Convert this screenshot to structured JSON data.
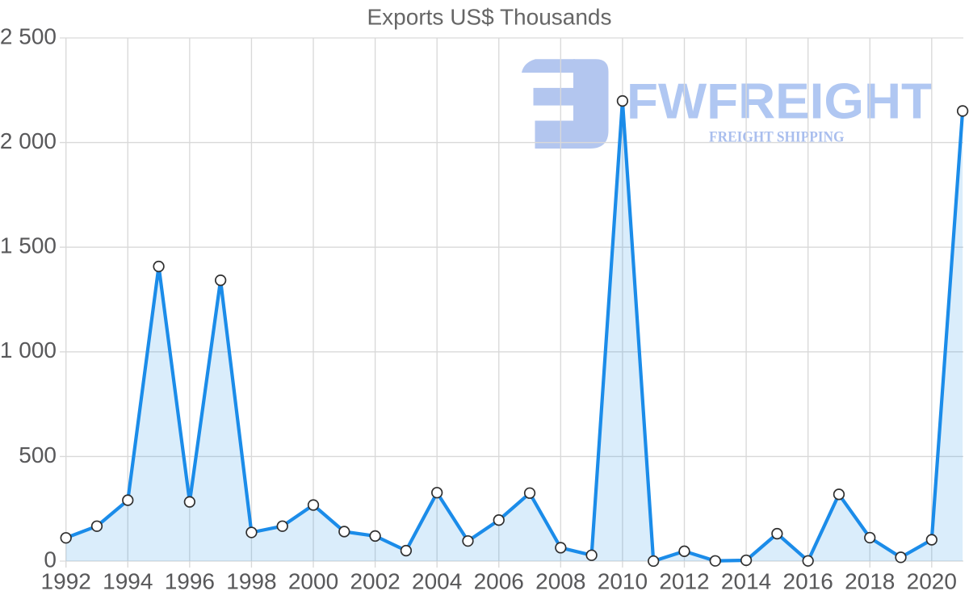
{
  "chart_data": {
    "type": "area",
    "title": "Exports US$ Thousands",
    "x": [
      1992,
      1993,
      1994,
      1995,
      1996,
      1997,
      1998,
      1999,
      2000,
      2001,
      2002,
      2003,
      2004,
      2005,
      2006,
      2007,
      2008,
      2009,
      2010,
      2011,
      2012,
      2013,
      2014,
      2015,
      2016,
      2017,
      2018,
      2019,
      2020,
      2021
    ],
    "values": [
      111,
      167,
      291,
      1408,
      283,
      1342,
      137,
      167,
      268,
      141,
      120,
      50,
      327,
      96,
      196,
      325,
      64,
      28,
      2199,
      0,
      47,
      1,
      4,
      131,
      1,
      319,
      112,
      18,
      102,
      2151
    ],
    "xlabel": "",
    "ylabel": "",
    "ylim": [
      0,
      2500
    ],
    "grid": true,
    "legend_position": "none",
    "y_ticks": [
      {
        "value": 0,
        "label": "0"
      },
      {
        "value": 500,
        "label": "500"
      },
      {
        "value": 1000,
        "label": "1 000"
      },
      {
        "value": 1500,
        "label": "1 500"
      },
      {
        "value": 2000,
        "label": "2 000"
      },
      {
        "value": 2500,
        "label": "2 500"
      }
    ],
    "x_ticks": [
      {
        "value": 1992,
        "label": "1992"
      },
      {
        "value": 1994,
        "label": "1994"
      },
      {
        "value": 1996,
        "label": "1996"
      },
      {
        "value": 1998,
        "label": "1998"
      },
      {
        "value": 2000,
        "label": "2000"
      },
      {
        "value": 2002,
        "label": "2002"
      },
      {
        "value": 2004,
        "label": "2004"
      },
      {
        "value": 2006,
        "label": "2006"
      },
      {
        "value": 2008,
        "label": "2008"
      },
      {
        "value": 2010,
        "label": "2010"
      },
      {
        "value": 2012,
        "label": "2012"
      },
      {
        "value": 2014,
        "label": "2014"
      },
      {
        "value": 2016,
        "label": "2016"
      },
      {
        "value": 2018,
        "label": "2018"
      },
      {
        "value": 2020,
        "label": "2020"
      }
    ],
    "colors": {
      "line": "#1b8ce9",
      "fill_opacity": 0.16,
      "marker_fill": "#ffffff",
      "marker_stroke": "#2f2f2f",
      "grid": "#d9d9d9",
      "tick_label": "#58585a",
      "title": "#666666",
      "background": "#ffffff"
    }
  },
  "watermark": {
    "brand": "FWFREIGHT",
    "tagline": "FREIGHT SHIPPING",
    "logo_icon": "fw-freight-logo",
    "brand_color": "#b0c7f2",
    "tagline_color": "#a9beee",
    "logo_color": "#b3c6ef"
  }
}
